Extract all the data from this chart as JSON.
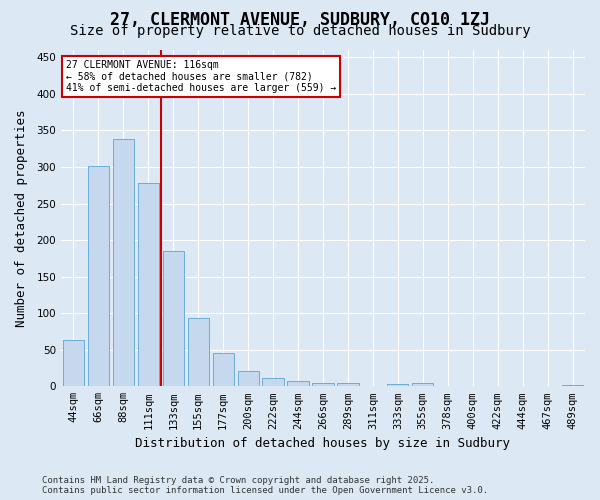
{
  "title": "27, CLERMONT AVENUE, SUDBURY, CO10 1ZJ",
  "subtitle": "Size of property relative to detached houses in Sudbury",
  "xlabel": "Distribution of detached houses by size in Sudbury",
  "ylabel": "Number of detached properties",
  "bins": [
    "44sqm",
    "66sqm",
    "88sqm",
    "111sqm",
    "133sqm",
    "155sqm",
    "177sqm",
    "200sqm",
    "222sqm",
    "244sqm",
    "266sqm",
    "289sqm",
    "311sqm",
    "333sqm",
    "355sqm",
    "378sqm",
    "400sqm",
    "422sqm",
    "444sqm",
    "467sqm",
    "489sqm"
  ],
  "values": [
    63,
    302,
    338,
    278,
    185,
    93,
    46,
    21,
    11,
    7,
    5,
    4,
    0,
    3,
    4,
    0,
    0,
    0,
    1,
    0,
    2
  ],
  "bar_color": "#c5d8ed",
  "bar_edge_color": "#6aaed6",
  "vline_x": 3.5,
  "vline_color": "#cc0000",
  "annotation_title": "27 CLERMONT AVENUE: 116sqm",
  "annotation_line1": "← 58% of detached houses are smaller (782)",
  "annotation_line2": "41% of semi-detached houses are larger (559) →",
  "annotation_box_color": "#ffffff",
  "annotation_box_edge": "#cc0000",
  "bg_color": "#dce9f5",
  "plot_bg_color": "#dce9f5",
  "footer": "Contains HM Land Registry data © Crown copyright and database right 2025.\nContains public sector information licensed under the Open Government Licence v3.0.",
  "ylim": [
    0,
    460
  ],
  "yticks": [
    0,
    50,
    100,
    150,
    200,
    250,
    300,
    350,
    400,
    450
  ],
  "title_fontsize": 12,
  "subtitle_fontsize": 10,
  "xlabel_fontsize": 9,
  "ylabel_fontsize": 9,
  "tick_fontsize": 7.5,
  "footer_fontsize": 6.5
}
